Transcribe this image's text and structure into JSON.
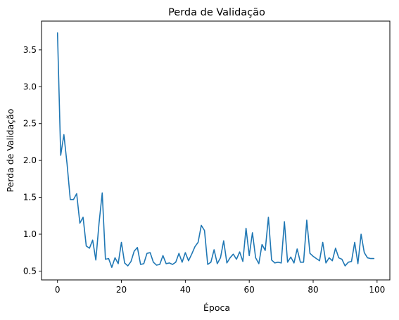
{
  "chart_data": {
    "type": "line",
    "title": "Perda de Validação",
    "xlabel": "Época",
    "ylabel": "Perda de Validação",
    "xlim": [
      -5,
      104
    ],
    "ylim": [
      0.38,
      3.89
    ],
    "xticks": [
      0,
      20,
      40,
      60,
      80,
      100
    ],
    "yticks": [
      0.5,
      1.0,
      1.5,
      2.0,
      2.5,
      3.0,
      3.5
    ],
    "xtick_labels": [
      "0",
      "20",
      "40",
      "60",
      "80",
      "100"
    ],
    "ytick_labels": [
      "0.5",
      "1.0",
      "1.5",
      "2.0",
      "2.5",
      "3.0",
      "3.5"
    ],
    "grid": false,
    "colors": {
      "line": "#1f77b4"
    },
    "series": [
      {
        "x": [
          0,
          1,
          2,
          3,
          4,
          5,
          6,
          7,
          8,
          9,
          10,
          11,
          12,
          13,
          14,
          15,
          16,
          17,
          18,
          19,
          20,
          21,
          22,
          23,
          24,
          25,
          26,
          27,
          28,
          29,
          30,
          31,
          32,
          33,
          34,
          35,
          36,
          37,
          38,
          39,
          40,
          41,
          42,
          43,
          44,
          45,
          46,
          47,
          48,
          49,
          50,
          51,
          52,
          53,
          54,
          55,
          56,
          57,
          58,
          59,
          60,
          61,
          62,
          63,
          64,
          65,
          66,
          67,
          68,
          69,
          70,
          71,
          72,
          73,
          74,
          75,
          76,
          77,
          78,
          79,
          80,
          81,
          82,
          83,
          84,
          85,
          86,
          87,
          88,
          89,
          90,
          91,
          92,
          93,
          94,
          95,
          96,
          97,
          98,
          99
        ],
        "values": [
          3.73,
          2.07,
          2.35,
          1.95,
          1.47,
          1.47,
          1.55,
          1.15,
          1.23,
          0.84,
          0.81,
          0.92,
          0.65,
          1.15,
          1.56,
          0.66,
          0.67,
          0.55,
          0.68,
          0.6,
          0.89,
          0.61,
          0.57,
          0.63,
          0.77,
          0.82,
          0.59,
          0.6,
          0.74,
          0.75,
          0.62,
          0.58,
          0.59,
          0.71,
          0.6,
          0.61,
          0.59,
          0.62,
          0.74,
          0.62,
          0.75,
          0.64,
          0.73,
          0.83,
          0.89,
          1.12,
          1.05,
          0.59,
          0.62,
          0.79,
          0.6,
          0.68,
          0.91,
          0.61,
          0.68,
          0.73,
          0.66,
          0.76,
          0.63,
          1.08,
          0.71,
          1.02,
          0.68,
          0.6,
          0.86,
          0.78,
          1.23,
          0.65,
          0.61,
          0.62,
          0.61,
          1.17,
          0.62,
          0.69,
          0.61,
          0.8,
          0.62,
          0.62,
          1.19,
          0.74,
          0.7,
          0.67,
          0.64,
          0.89,
          0.61,
          0.68,
          0.64,
          0.81,
          0.68,
          0.66,
          0.57,
          0.62,
          0.63,
          0.89,
          0.6,
          1.0,
          0.75,
          0.68,
          0.67,
          0.67
        ]
      }
    ]
  }
}
